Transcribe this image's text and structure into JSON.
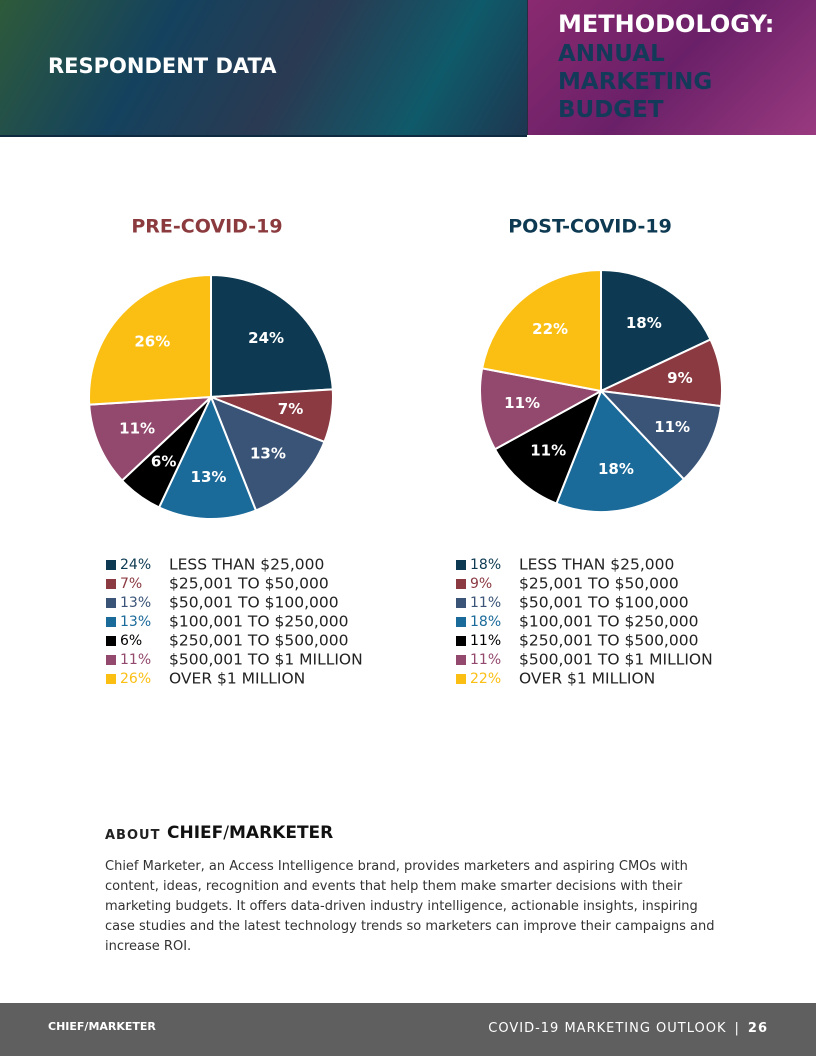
{
  "header": {
    "left_title": "RESPONDENT DATA",
    "right_title_1": "METHODOLOGY:",
    "right_title_2": "ANNUAL MARKETING BUDGET"
  },
  "chart_data": [
    {
      "type": "pie",
      "title": "PRE-COVID-19",
      "title_color": "#8b3a3e",
      "categories": [
        "LESS THAN $25,000",
        "$25,001 TO $50,000",
        "$50,001 TO $100,000",
        "$100,001 TO $250,000",
        "$250,001 TO $500,000",
        "$500,001 TO $1 MILLION",
        "OVER $1 MILLION"
      ],
      "values": [
        24,
        7,
        13,
        13,
        6,
        11,
        26
      ],
      "value_labels": [
        "24%",
        "7%",
        "13%",
        "13%",
        "6%",
        "11%",
        "26%"
      ],
      "colors": [
        "#0d3a52",
        "#8b3a42",
        "#3a5478",
        "#1a6a9a",
        "#000000",
        "#93496e",
        "#fbbf14"
      ]
    },
    {
      "type": "pie",
      "title": "POST-COVID-19",
      "title_color": "#0d3a52",
      "categories": [
        "LESS THAN $25,000",
        "$25,001 TO $50,000",
        "$50,001 TO $100,000",
        "$100,001 TO $250,000",
        "$250,001 TO $500,000",
        "$500,001 TO $1 MILLION",
        "OVER $1 MILLION"
      ],
      "values": [
        18,
        9,
        11,
        18,
        11,
        11,
        22
      ],
      "value_labels": [
        "18%",
        "9%",
        "11%",
        "18%",
        "11%",
        "11%",
        "22%"
      ],
      "colors": [
        "#0d3a52",
        "#8b3a42",
        "#3a5478",
        "#1a6a9a",
        "#000000",
        "#93496e",
        "#fbbf14"
      ]
    }
  ],
  "about": {
    "label": "ABOUT",
    "logo_1": "CHIEF",
    "logo_2": "MARKETER",
    "text": "Chief Marketer, an Access Intelligence brand, provides marketers and aspiring CMOs with content, ideas, recognition and events that help them make smarter decisions with their marketing budgets. It offers data-driven industry intelligence, actionable insights, inspiring case studies and the latest technology trends so marketers can improve their campaigns and increase ROI."
  },
  "footer": {
    "logo_1": "CHIEF",
    "logo_2": "MARKETER",
    "title": "COVID-19 MARKETING OUTLOOK",
    "page": "26"
  }
}
